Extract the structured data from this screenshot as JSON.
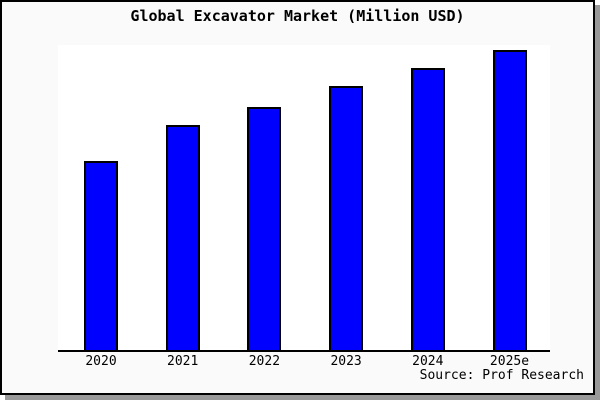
{
  "figure": {
    "title": "Global Excavator Market (Million USD)",
    "source": "Source: Prof Research"
  },
  "chart_data": {
    "type": "bar",
    "title": "Global Excavator Market (Million USD)",
    "categories": [
      "2020",
      "2021",
      "2022",
      "2023",
      "2024",
      "2025e"
    ],
    "values": [
      63,
      75,
      81,
      88,
      94,
      100
    ],
    "values_note": "relative bar heights, max = 100; chart shows no numeric value axis or data labels",
    "xlabel": "",
    "ylabel": "",
    "legend": "none",
    "grid": false,
    "bar_color": "#0000ff",
    "bar_border_color": "#000000",
    "plot_background": "#ffffff",
    "figure_background": "#fafafa",
    "axis_color": "#000000",
    "source": "Source: Prof Research"
  }
}
